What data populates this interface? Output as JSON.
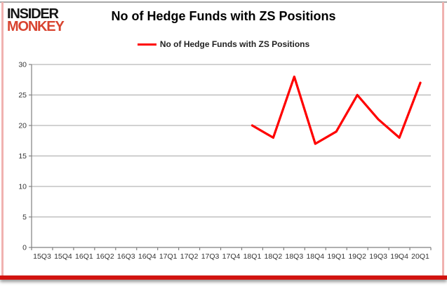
{
  "logo": {
    "line1": "INSIDER",
    "line2": "MONKEY"
  },
  "header": {
    "title": "No of Hedge Funds with ZS Positions"
  },
  "legend": {
    "label": "No of Hedge Funds with ZS Positions",
    "line_color": "#ff0000"
  },
  "chart_data": {
    "type": "line",
    "title": "No of Hedge Funds with ZS Positions",
    "categories": [
      "15Q3",
      "15Q4",
      "16Q1",
      "16Q2",
      "16Q3",
      "16Q4",
      "17Q1",
      "17Q2",
      "17Q3",
      "17Q4",
      "18Q1",
      "18Q2",
      "18Q3",
      "18Q4",
      "19Q1",
      "19Q2",
      "19Q3",
      "19Q4",
      "20Q1"
    ],
    "series": [
      {
        "name": "No of Hedge Funds with ZS Positions",
        "color": "#ff0000",
        "values": [
          null,
          null,
          null,
          null,
          null,
          null,
          null,
          null,
          null,
          null,
          20,
          18,
          28,
          17,
          19,
          25,
          21,
          18,
          27
        ]
      }
    ],
    "ylim": [
      0,
      30
    ],
    "ytick_step": 5,
    "grid": true,
    "legend_position": "top",
    "axis_color": "#808080",
    "gridline_color": "#a6a6a6"
  }
}
